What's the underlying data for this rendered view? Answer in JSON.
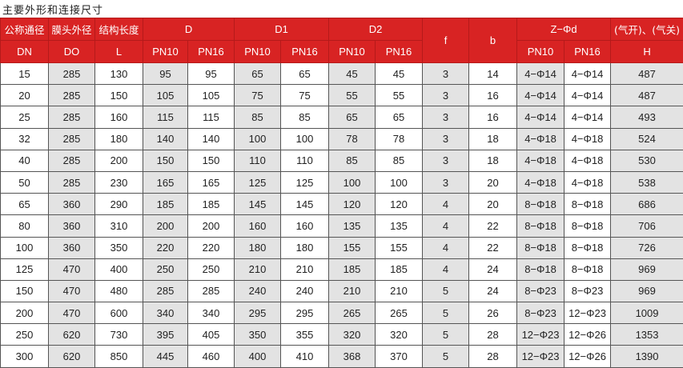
{
  "title": "主要外形和连接尺寸",
  "header": {
    "dn_top": "公称通径",
    "dn": "DN",
    "do_top": "膜头外径",
    "do": "DO",
    "l_top": "结构长度",
    "l": "L",
    "d": "D",
    "d1": "D1",
    "d2": "D2",
    "f": "f",
    "b": "b",
    "zd": "Z−Φd",
    "h_top": "(气开)、(气关)",
    "h": "H",
    "pn10": "PN10",
    "pn16": "PN16"
  },
  "rows": [
    [
      "15",
      "285",
      "130",
      "95",
      "95",
      "65",
      "65",
      "45",
      "45",
      "3",
      "14",
      "4−Φ14",
      "4−Φ14",
      "487"
    ],
    [
      "20",
      "285",
      "150",
      "105",
      "105",
      "75",
      "75",
      "55",
      "55",
      "3",
      "16",
      "4−Φ14",
      "4−Φ14",
      "487"
    ],
    [
      "25",
      "285",
      "160",
      "115",
      "115",
      "85",
      "85",
      "65",
      "65",
      "3",
      "16",
      "4−Φ14",
      "4−Φ14",
      "493"
    ],
    [
      "32",
      "285",
      "180",
      "140",
      "140",
      "100",
      "100",
      "78",
      "78",
      "3",
      "18",
      "4−Φ18",
      "4−Φ18",
      "524"
    ],
    [
      "40",
      "285",
      "200",
      "150",
      "150",
      "110",
      "110",
      "85",
      "85",
      "3",
      "18",
      "4−Φ18",
      "4−Φ18",
      "530"
    ],
    [
      "50",
      "285",
      "230",
      "165",
      "165",
      "125",
      "125",
      "100",
      "100",
      "3",
      "20",
      "4−Φ18",
      "4−Φ18",
      "538"
    ],
    [
      "65",
      "360",
      "290",
      "185",
      "185",
      "145",
      "145",
      "120",
      "120",
      "4",
      "20",
      "8−Φ18",
      "8−Φ18",
      "686"
    ],
    [
      "80",
      "360",
      "310",
      "200",
      "200",
      "160",
      "160",
      "135",
      "135",
      "4",
      "22",
      "8−Φ18",
      "8−Φ18",
      "706"
    ],
    [
      "100",
      "360",
      "350",
      "220",
      "220",
      "180",
      "180",
      "155",
      "155",
      "4",
      "22",
      "8−Φ18",
      "8−Φ18",
      "726"
    ],
    [
      "125",
      "470",
      "400",
      "250",
      "250",
      "210",
      "210",
      "185",
      "185",
      "4",
      "24",
      "8−Φ18",
      "8−Φ18",
      "969"
    ],
    [
      "150",
      "470",
      "480",
      "285",
      "285",
      "240",
      "240",
      "210",
      "210",
      "5",
      "24",
      "8−Φ23",
      "8−Φ23",
      "969"
    ],
    [
      "200",
      "470",
      "600",
      "340",
      "340",
      "295",
      "295",
      "265",
      "265",
      "5",
      "26",
      "8−Φ23",
      "12−Φ23",
      "1009"
    ],
    [
      "250",
      "620",
      "730",
      "395",
      "405",
      "350",
      "355",
      "320",
      "320",
      "5",
      "28",
      "12−Φ23",
      "12−Φ26",
      "1353"
    ],
    [
      "300",
      "620",
      "850",
      "445",
      "460",
      "400",
      "410",
      "368",
      "370",
      "5",
      "28",
      "12−Φ23",
      "12−Φ26",
      "1390"
    ]
  ]
}
